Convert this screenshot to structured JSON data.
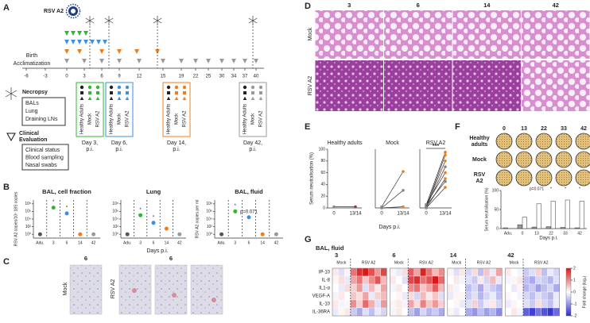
{
  "panel_a": {
    "label": "A",
    "virus": "RSV A2",
    "birth": "Birth",
    "acclimatization": "Acclimatization",
    "timeline": [
      -6,
      -3,
      0,
      3,
      6,
      9,
      12,
      15,
      19,
      22,
      25,
      30,
      34,
      37,
      40
    ],
    "necropsy": {
      "title": "Necropsy",
      "items": [
        "BALs",
        "Lung",
        "Draining LNs"
      ]
    },
    "clinical": {
      "title": [
        "Clinical",
        "Evaluation"
      ],
      "items": [
        "Clinical status",
        "Blood sampling",
        "Nasal swabs"
      ]
    },
    "groups": [
      "Healthy Adults",
      "Mock",
      "RSV A2"
    ],
    "timepoints": [
      {
        "caption": [
          "Day 3,",
          "p.i."
        ],
        "color": "#2db82d"
      },
      {
        "caption": [
          "Day 6,",
          "p.i."
        ],
        "color": "#3d8fe0"
      },
      {
        "caption": [
          "Day 14,",
          "p.i."
        ],
        "color": "#f07c1b"
      },
      {
        "caption": [
          "Day 42,",
          "p.i."
        ],
        "color": "#9a9a9a"
      }
    ]
  },
  "panel_b": {
    "label": "B",
    "categories": [
      "Adu.",
      "3",
      "6",
      "14",
      "42"
    ],
    "colors": [
      "#555555",
      "#2db82d",
      "#3d8fe0",
      "#f07c1b",
      "#9a9a9a"
    ],
    "xlabel": "Days p.i.",
    "log": true,
    "ylim": [
      0.1,
      1000000000
    ],
    "yticks": [
      {
        "value": 1,
        "label": "10⁰"
      },
      {
        "value": 100,
        "label": "10²"
      },
      {
        "value": 10000,
        "label": "10⁴"
      },
      {
        "value": 1000000,
        "label": "10⁶"
      },
      {
        "value": 100000000,
        "label": "10⁸"
      }
    ],
    "plots": [
      {
        "title": "BAL, cell fraction",
        "ylabel": "RSV A2 copies/10⁵ 18S copies",
        "values": [
          1,
          10000000,
          300000,
          1,
          1
        ],
        "annotations": [
          "*",
          "*"
        ]
      },
      {
        "title": "Lung",
        "values": [
          1,
          100000,
          1000,
          30,
          1
        ],
        "annotations": [
          "*",
          "*"
        ]
      },
      {
        "title": "BAL, fluid",
        "ylabel": "RSV A2 copies per ml",
        "values": [
          1,
          1000000,
          30000,
          1,
          1
        ],
        "annotations": [
          "*",
          "p=0.071"
        ]
      }
    ]
  },
  "panel_c": {
    "label": "C",
    "headers": [
      "6",
      "6"
    ],
    "rows": [
      "Mock",
      "RSV A2"
    ],
    "color": "#3d8fe0"
  },
  "panel_d": {
    "label": "D",
    "rows": [
      "Mock",
      "RSV A2"
    ],
    "days": [
      {
        "label": "3",
        "color": "#2db82d"
      },
      {
        "label": "6",
        "color": "#3d8fe0"
      },
      {
        "label": "14",
        "color": "#f07c1b"
      },
      {
        "label": "42",
        "color": "#9a9a9a"
      }
    ]
  },
  "panel_e": {
    "label": "E",
    "ylabel": "Serum neutralisation (%)",
    "xlabel": "Days p.i.",
    "x": [
      "0",
      "13/14"
    ],
    "ylim": [
      0,
      100
    ],
    "yticks": [
      0,
      20,
      40,
      60,
      80,
      100
    ],
    "groups": [
      {
        "title": "Healthy adults",
        "color": "#b03030",
        "subjects": [
          [
            2,
            2
          ]
        ]
      },
      {
        "title": "Mock",
        "color": "#f07c1b",
        "subjects": [
          [
            0,
            2
          ],
          [
            2,
            62
          ],
          [
            0,
            30
          ]
        ]
      },
      {
        "title": "RSV A2",
        "color": "#f07c1b",
        "annotation": "***",
        "subjects": [
          [
            5,
            95
          ],
          [
            3,
            80
          ],
          [
            2,
            70
          ],
          [
            6,
            60
          ],
          [
            0,
            50
          ],
          [
            4,
            45
          ],
          [
            1,
            90
          ],
          [
            0,
            35
          ]
        ]
      }
    ]
  },
  "panel_f": {
    "label": "F",
    "plate_days": [
      "0",
      "13",
      "22",
      "33",
      "42"
    ],
    "plate_rows": [
      [
        "Healthy",
        "adults"
      ],
      [
        "Mock"
      ],
      [
        "RSV",
        "A2"
      ]
    ],
    "ylabel": "Serum neutralisation (%)",
    "xlabel": "Days p.i.",
    "categories": [
      "Adu.",
      "0",
      "13",
      "22",
      "33",
      "42"
    ],
    "ylim": [
      0,
      100
    ],
    "yticks": [
      0,
      50,
      100
    ],
    "series": [
      {
        "color": "#9a9a9a",
        "values": [
          2,
          10,
          4,
          5,
          3,
          2
        ]
      },
      {
        "color": "#ffffff",
        "values": [
          null,
          30,
          65,
          72,
          75,
          72
        ]
      }
    ],
    "annotations": [
      "p=0.071",
      "*",
      "*",
      "*"
    ]
  },
  "panel_g": {
    "label": "G",
    "title": "BAL, fluid",
    "rows": [
      "IP-10",
      "IL-8",
      "IL1-α",
      "VEGF-A",
      "IL-10",
      "IL-36RA"
    ],
    "clim": [
      -2,
      2
    ],
    "cticks": [
      2,
      1,
      0,
      -1,
      -2
    ],
    "ctitle": "Fold change (log₂)",
    "groups": [
      {
        "label": "3",
        "color": "#2db82d",
        "mock": {
          "label": "Mock",
          "values": [
            [
              0.2,
              -0.3,
              0.1
            ],
            [
              0.1,
              0.3,
              -0.2
            ],
            [
              0,
              -0.2,
              0.3
            ],
            [
              -0.1,
              0.2,
              0
            ],
            [
              0.2,
              -0.1,
              0.1
            ],
            [
              -0.2,
              0.1,
              0.2
            ]
          ]
        },
        "rsv": {
          "label": "RSV A2",
          "values": [
            [
              1.2,
              1.8,
              2.0,
              1.5,
              0.9,
              1.6
            ],
            [
              0.8,
              1.2,
              0.5,
              1.0,
              1.5,
              0.6
            ],
            [
              0.4,
              0.9,
              -0.3,
              0.6,
              0.2,
              0.8
            ],
            [
              0.5,
              0.3,
              0.8,
              -0.2,
              0.4,
              0.6
            ],
            [
              1.0,
              0.4,
              1.3,
              0.7,
              -0.3,
              0.9
            ],
            [
              -0.5,
              -0.8,
              -0.3,
              -0.6,
              -0.2,
              -0.4
            ]
          ]
        }
      },
      {
        "label": "6",
        "color": "#3d8fe0",
        "mock": {
          "label": "Mock",
          "values": [
            [
              0.1,
              -0.2,
              0.3
            ],
            [
              0.2,
              0,
              -0.3
            ],
            [
              -0.1,
              0.2,
              0
            ],
            [
              0,
              0.1,
              -0.2
            ],
            [
              0.1,
              0.2,
              -0.1
            ],
            [
              -0.1,
              0.2,
              0
            ]
          ]
        },
        "rsv": {
          "label": "RSV A2",
          "values": [
            [
              1.4,
              0.8,
              1.9,
              1.2,
              0.6,
              1.0
            ],
            [
              1.6,
              1.8,
              1.2,
              1.5,
              2.0,
              1.3
            ],
            [
              1.0,
              1.2,
              0.5,
              0.8,
              1.4,
              0.6
            ],
            [
              0.3,
              -0.4,
              0.6,
              0.2,
              0.5,
              -0.3
            ],
            [
              0.8,
              0.3,
              1.1,
              0.5,
              0.9,
              0.4
            ],
            [
              -0.6,
              -0.9,
              -0.4,
              -0.7,
              -0.5,
              -0.8
            ]
          ]
        }
      },
      {
        "label": "14",
        "color": "#f07c1b",
        "mock": {
          "label": "Mock",
          "values": [
            [
              0.1,
              -0.3,
              0.2
            ],
            [
              0,
              0.2,
              -0.1
            ],
            [
              0.2,
              -0.1,
              0
            ],
            [
              -0.2,
              0.1,
              0.1
            ],
            [
              0,
              0.1,
              -0.2
            ],
            [
              0.1,
              -0.2,
              0
            ]
          ]
        },
        "rsv": {
          "label": "RSV A2",
          "values": [
            [
              -0.4,
              0.3,
              -0.6,
              0.5,
              -0.2,
              0.8
            ],
            [
              -0.3,
              -0.5,
              0.2,
              -0.4,
              0.6,
              -0.2
            ],
            [
              -0.6,
              -0.4,
              -0.8,
              -0.3,
              -0.5,
              -0.7
            ],
            [
              -0.5,
              -0.3,
              -0.7,
              -0.4,
              -0.2,
              -0.6
            ],
            [
              -0.3,
              0.4,
              -0.5,
              -0.2,
              0.2,
              -0.4
            ],
            [
              -0.8,
              -1.0,
              -0.6,
              -0.9,
              -0.7,
              -1.1
            ]
          ]
        }
      },
      {
        "label": "42",
        "color": "#9a9a9a",
        "mock": {
          "label": "Mock",
          "values": [
            [
              0.2,
              0,
              -0.1
            ],
            [
              -0.1,
              0.1,
              0.2
            ],
            [
              0,
              -0.2,
              0.1
            ],
            [
              0.1,
              0,
              -0.1
            ],
            [
              -0.2,
              0.1,
              0
            ],
            [
              0,
              0.2,
              -0.1
            ]
          ]
        },
        "rsv": {
          "label": "RSV A2",
          "values": [
            [
              -0.5,
              -0.3,
              0.4,
              -0.6,
              -0.2,
              -0.4
            ],
            [
              -0.6,
              -0.8,
              -0.4,
              -0.5,
              -0.7,
              -0.3
            ],
            [
              -0.7,
              -0.5,
              -0.9,
              -0.6,
              -0.4,
              -0.8
            ],
            [
              -0.4,
              -0.6,
              -0.3,
              -0.5,
              -0.7,
              -0.2
            ],
            [
              -0.3,
              -0.5,
              0.3,
              -0.4,
              -0.6,
              -0.2
            ],
            [
              -1.5,
              -1.8,
              -1.3,
              -1.6,
              -1.9,
              -1.4
            ]
          ]
        }
      }
    ]
  }
}
